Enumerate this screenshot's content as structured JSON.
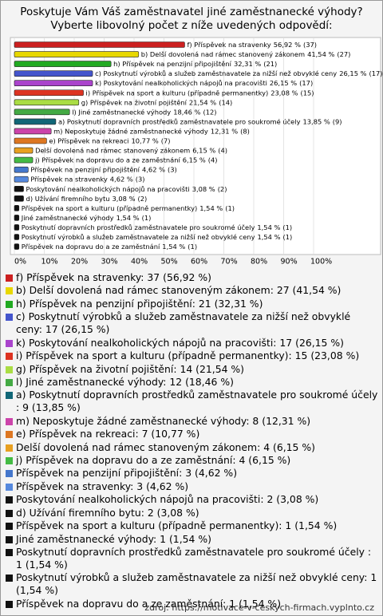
{
  "chart_data": {
    "type": "hbar",
    "title": "Poskytuje Vám Váš zaměstnavatel jiné zaměstnanecké výhody?",
    "subtitle": "Vyberte libovolný počet z níže uvedených odpovědí:",
    "categories": [
      "f) Příspěvek na stravenky",
      "b) Delší dovolená nad rámec stanovený zákonem",
      "h) Příspěvek na penzijní připojištění",
      "c) Poskytnutí výrobků a služeb zaměstnavatele za nižší než obvyklé ceny",
      "k) Poskytování nealkoholických nápojů na pracovišti",
      "i) Příspěvek na sport a kulturu (případně permanentky)",
      "g) Příspěvek na životní pojištění",
      "l) Jiné zaměstnanecké výhody",
      "a) Poskytnutí dopravních prostředků zaměstnavatele pro soukromé účely",
      "m) Neposkytuje žádné zaměstnanecké výhody",
      "e) Příspěvek na rekreaci",
      "Delší dovolená nad rámec stanovený zákonem",
      "j) Příspěvek na dopravu do a ze zaměstnání",
      "Příspěvek na penzijní připojištění",
      "Příspěvek na stravenky",
      "Poskytování nealkoholických nápojů na pracovišti",
      "d) Užívání firemního bytu",
      "Příspěvek na sport a kulturu (případně permanentky)",
      "Jiné zaměstnanecké výhody",
      "Poskytnutí dopravních prostředků zaměstnavatele pro soukromé účely",
      "Poskytnutí výrobků a služeb zaměstnavatele za nižší než obvyklé ceny",
      "Příspěvek na dopravu do a ze zaměstnání"
    ],
    "values": [
      56.92,
      41.54,
      32.31,
      26.15,
      26.15,
      23.08,
      21.54,
      18.46,
      13.85,
      12.31,
      10.77,
      6.15,
      6.15,
      4.62,
      4.62,
      3.08,
      3.08,
      1.54,
      1.54,
      1.54,
      1.54,
      1.54
    ],
    "value_labels": [
      "56,92 %",
      "41,54 %",
      "32,31 %",
      "26,15 %",
      "26,15 %",
      "23,08 %",
      "21,54 %",
      "18,46 %",
      "13,85 %",
      "12,31 %",
      "10,77 %",
      "6,15 %",
      "6,15 %",
      "4,62 %",
      "4,62 %",
      "3,08 %",
      "3,08 %",
      "1,54 %",
      "1,54 %",
      "1,54 %",
      "1,54 %",
      "1,54 %"
    ],
    "count_labels": [
      "(37)",
      "(27)",
      "(21)",
      "(17)",
      "(17)",
      "(15)",
      "(14)",
      "(12)",
      "(9)",
      "(8)",
      "(7)",
      "(4)",
      "(4)",
      "(3)",
      "(3)",
      "(2)",
      "(2)",
      "(1)",
      "(1)",
      "(1)",
      "(1)",
      "(1)"
    ],
    "colors": [
      "#cc2020",
      "#e8d800",
      "#22aa22",
      "#4455cc",
      "#aa44cc",
      "#dd3322",
      "#aadd44",
      "#44aa44",
      "#116677",
      "#cc44aa",
      "#dd7722",
      "#e8a020",
      "#44bb44",
      "#4477cc",
      "#5588dd",
      "#111111",
      "#111111",
      "#111111",
      "#111111",
      "#111111",
      "#111111",
      "#111111"
    ],
    "xlim": [
      0,
      100
    ],
    "xticks": [
      {
        "value": 0,
        "label": "0%"
      },
      {
        "value": 10,
        "label": "10%"
      },
      {
        "value": 20,
        "label": "20%"
      },
      {
        "value": 30,
        "label": "30%"
      },
      {
        "value": 40,
        "label": "40%"
      },
      {
        "value": 50,
        "label": "50%"
      },
      {
        "value": 60,
        "label": "60%"
      },
      {
        "value": 70,
        "label": "70%"
      },
      {
        "value": 80,
        "label": "80%"
      },
      {
        "value": 90,
        "label": "90%"
      },
      {
        "value": 100,
        "label": "100%"
      }
    ],
    "legend": [
      "f) Příspěvek na stravenky: 37 (56,92 %)",
      "b) Delší dovolená nad rámec stanoveným zákonem: 27 (41,54 %)",
      "h) Příspěvek na penzijní připojištění: 21 (32,31 %)",
      "c) Poskytnutí výrobků a služeb zaměstnavatele za nižší než obvyklé ceny: 17 (26,15 %)",
      "k) Poskytování nealkoholických nápojů na pracovišti: 17 (26,15 %)",
      "i) Příspěvek na sport a kulturu (případně permanentky): 15 (23,08 %)",
      "g) Příspěvek na životní pojištění: 14 (21,54 %)",
      "l) Jiné zaměstnanecké výhody: 12 (18,46 %)",
      "a) Poskytnutí dopravních prostředků zaměstnavatele pro soukromé účely : 9 (13,85 %)",
      "m) Neposkytuje žádné zaměstnanecké výhody: 8 (12,31 %)",
      "e) Příspěvek na rekreaci: 7 (10,77 %)",
      "Delší dovolená nad rámec stanoveným zákonem: 4 (6,15 %)",
      "j) Příspěvek na dopravu do a ze zaměstnání: 4 (6,15 %)",
      "Příspěvek na penzijní připojištění: 3 (4,62 %)",
      "Příspěvek na stravenky: 3 (4,62 %)",
      "Poskytování nealkoholických nápojů na pracovišti: 2 (3,08 %)",
      "d) Užívání firemního bytu: 2 (3,08 %)",
      "Příspěvek na sport a kulturu (případně permanentky): 1 (1,54 %)",
      "Jiné zaměstnanecké výhody: 1 (1,54 %)",
      "Poskytnutí dopravních prostředků zaměstnavatele pro soukromé účely : 1 (1,54 %)",
      "Poskytnutí výrobků a služeb zaměstnavatele za nižší než obvyklé ceny: 1 (1,54 %)",
      "Příspěvek na dopravu do a ze zaměstnání: 1 (1,54 %)"
    ],
    "source": "zdroj: https://motivace-v-ceskych-firmach.vyplnto.cz"
  }
}
